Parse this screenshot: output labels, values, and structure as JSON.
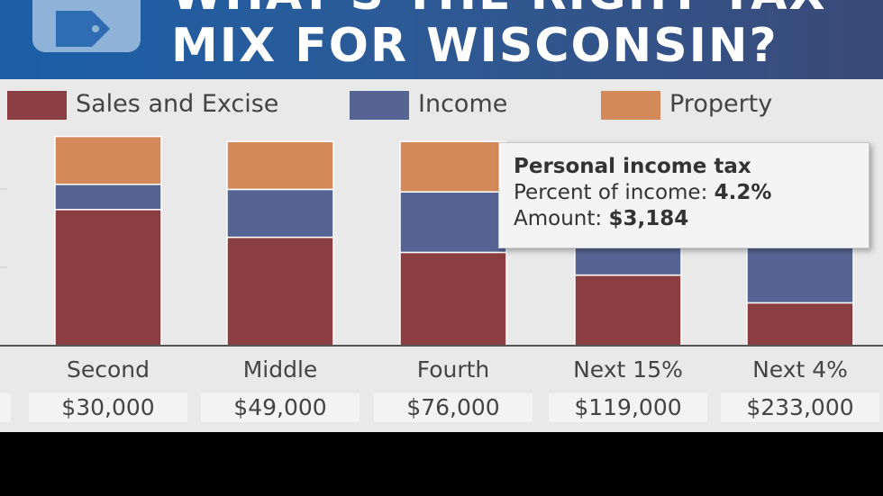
{
  "banner": {
    "title_line1": "WHAT'S THE RIGHT TAX",
    "title_line2": "MIX FOR WISCONSIN?",
    "icon": "tag-icon"
  },
  "colors": {
    "sales": "#8b3e42",
    "income": "#566494",
    "property": "#d4895a",
    "axis": "#555555",
    "background": "#e9e9e9"
  },
  "chart_data": {
    "type": "bar",
    "stacked": true,
    "legend": [
      "Sales and Excise",
      "Income",
      "Property"
    ],
    "legend_position": "top",
    "categories": [
      "Second",
      "Middle",
      "Fourth",
      "Next 15%",
      "Next 4%"
    ],
    "income_labels": [
      "$30,000",
      "$49,000",
      "$76,000",
      "$119,000",
      "$233,000"
    ],
    "series": [
      {
        "name": "Sales and Excise",
        "values": [
          5.4,
          4.3,
          3.7,
          2.8,
          1.7
        ]
      },
      {
        "name": "Income",
        "values": [
          1.0,
          1.9,
          2.4,
          1.2,
          2.3
        ]
      },
      {
        "name": "Property",
        "values": [
          1.9,
          1.9,
          2.0,
          0,
          0
        ]
      }
    ],
    "ylim": [
      0,
      10
    ],
    "grid": false,
    "tooltip": {
      "title": "Personal income tax",
      "percent_label": "Percent of income:",
      "percent_value": "4.2%",
      "amount_label": "Amount:",
      "amount_value": "$3,184"
    }
  }
}
